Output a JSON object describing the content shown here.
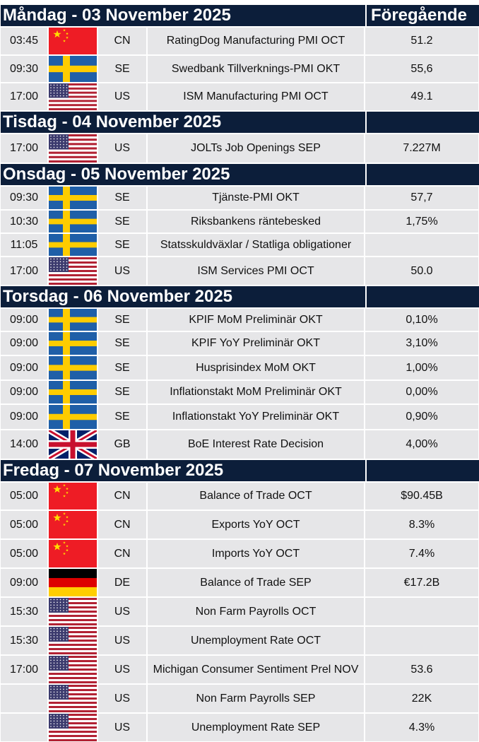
{
  "column_header": "Föregående",
  "days": [
    {
      "title": "Måndag - 03 November 2025",
      "rows": [
        {
          "time": "03:45",
          "country": "CN",
          "event": "RatingDog Manufacturing PMI OCT",
          "previous": "51.2"
        },
        {
          "time": "09:30",
          "country": "SE",
          "event": "Swedbank Tillverknings-PMI OKT",
          "previous": "55,6"
        },
        {
          "time": "17:00",
          "country": "US",
          "event": "ISM Manufacturing PMI OCT",
          "previous": "49.1"
        }
      ]
    },
    {
      "title": "Tisdag - 04 November 2025",
      "rows": [
        {
          "time": "17:00",
          "country": "US",
          "event": "JOLTs Job Openings SEP",
          "previous": "7.227M"
        }
      ]
    },
    {
      "title": "Onsdag - 05 November 2025",
      "rows": [
        {
          "time": "09:30",
          "country": "SE",
          "event": "Tjänste-PMI OKT",
          "previous": "57,7"
        },
        {
          "time": "10:30",
          "country": "SE",
          "event": "Riksbankens räntebesked",
          "previous": "1,75%"
        },
        {
          "time": "11:05",
          "country": "SE",
          "event": "Statsskuldväxlar / Statliga obligationer"
        },
        {
          "time": "17:00",
          "country": "US",
          "event": "ISM Services PMI OCT",
          "previous": "50.0"
        }
      ]
    },
    {
      "title": "Torsdag - 06 November 2025",
      "rows": [
        {
          "time": "09:00",
          "country": "SE",
          "event": "KPIF MoM Preliminär OKT",
          "previous": "0,10%"
        },
        {
          "time": "09:00",
          "country": "SE",
          "event": "KPIF YoY Preliminär OKT",
          "previous": "3,10%"
        },
        {
          "time": "09:00",
          "country": "SE",
          "event": "Husprisindex MoM OKT",
          "previous": "1,00%"
        },
        {
          "time": "09:00",
          "country": "SE",
          "event": "Inflationstakt MoM Preliminär OKT",
          "previous": "0,00%"
        },
        {
          "time": "09:00",
          "country": "SE",
          "event": "Inflationstakt YoY Preliminär OKT",
          "previous": "0,90%"
        },
        {
          "time": "14:00",
          "country": "GB",
          "event": "BoE Interest Rate Decision",
          "previous": "4,00%"
        }
      ]
    },
    {
      "title": "Fredag - 07 November 2025",
      "rows": [
        {
          "time": "05:00",
          "country": "CN",
          "event": "Balance of Trade OCT",
          "previous": "$90.45B"
        },
        {
          "time": "05:00",
          "country": "CN",
          "event": "Exports YoY OCT",
          "previous": "8.3%"
        },
        {
          "time": "05:00",
          "country": "CN",
          "event": "Imports YoY OCT",
          "previous": "7.4%"
        },
        {
          "time": "09:00",
          "country": "DE",
          "event": "Balance of Trade SEP",
          "previous": "€17.2B"
        },
        {
          "time": "15:30",
          "country": "US",
          "event": "Non Farm Payrolls OCT"
        },
        {
          "time": "15:30",
          "country": "US",
          "event": "Unemployment Rate OCT"
        },
        {
          "time": "17:00",
          "country": "US",
          "event": "Michigan Consumer Sentiment Prel NOV",
          "previous": "53.6"
        },
        {
          "country": "US",
          "event": "Non Farm Payrolls SEP",
          "previous": "22K"
        },
        {
          "country": "US",
          "event": "Unemployment Rate SEP",
          "previous": "4.3%"
        }
      ]
    }
  ]
}
